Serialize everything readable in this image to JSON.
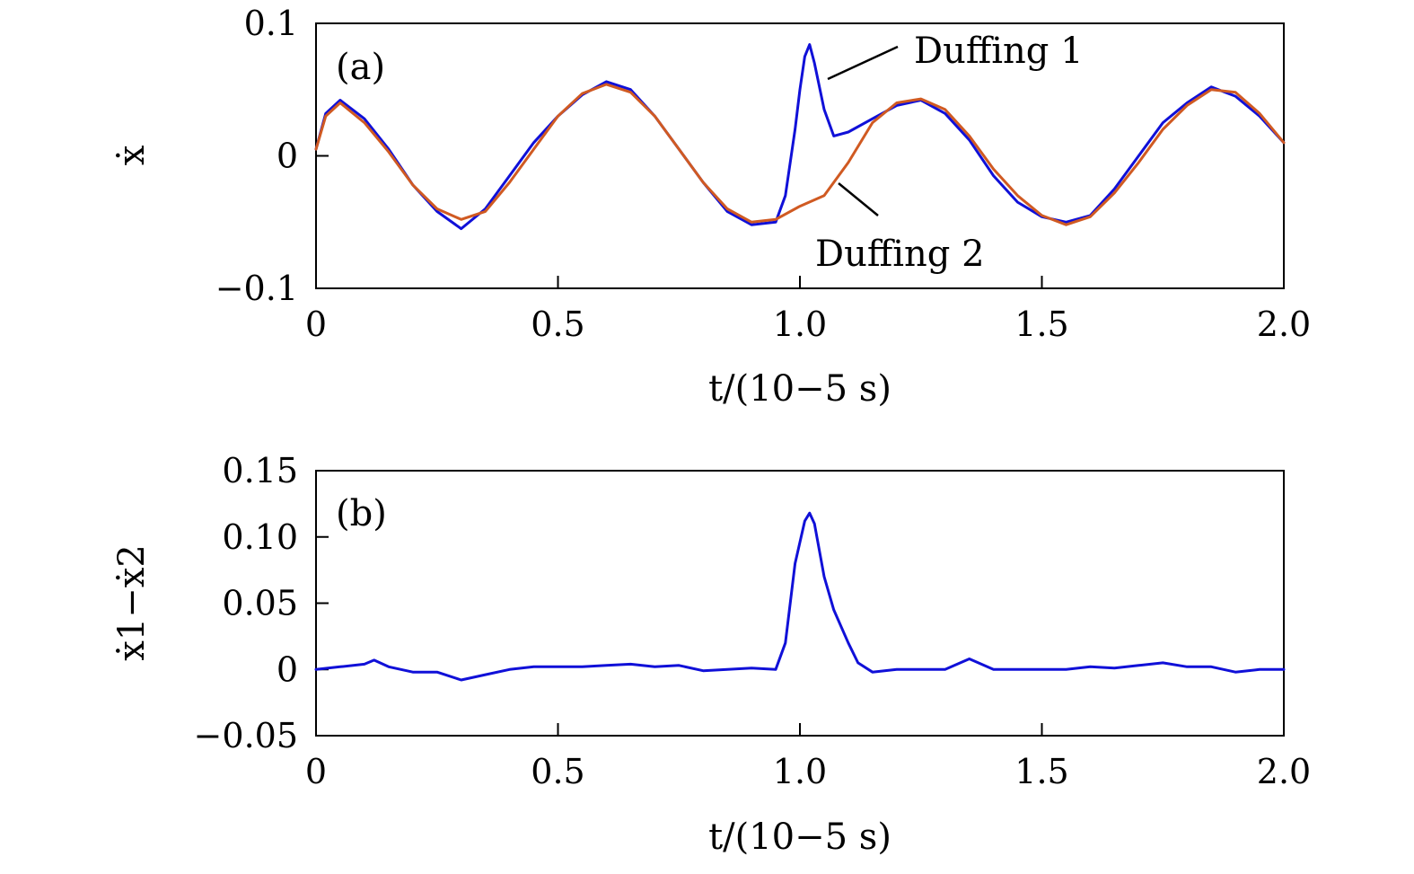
{
  "chart_data": [
    {
      "type": "line",
      "panel_label": "(a)",
      "xlabel": "t/(10−5 s)",
      "ylabel": "ẋ",
      "xlim": [
        0,
        2.0
      ],
      "ylim": [
        -0.1,
        0.1
      ],
      "xticks": [
        "0",
        "0.5",
        "1.0",
        "1.5",
        "2.0"
      ],
      "yticks": [
        "−0.1",
        "0",
        "0.1"
      ],
      "grid": false,
      "colors": {
        "duffing1": "#1010d8",
        "duffing2": "#d05a22"
      },
      "series": [
        {
          "name": "Duffing 1",
          "x": [
            0,
            0.02,
            0.05,
            0.1,
            0.15,
            0.2,
            0.25,
            0.3,
            0.35,
            0.4,
            0.45,
            0.5,
            0.55,
            0.6,
            0.65,
            0.7,
            0.75,
            0.8,
            0.85,
            0.9,
            0.95,
            0.97,
            0.99,
            1.0,
            1.01,
            1.02,
            1.03,
            1.05,
            1.07,
            1.1,
            1.15,
            1.2,
            1.25,
            1.3,
            1.35,
            1.4,
            1.45,
            1.5,
            1.55,
            1.6,
            1.65,
            1.7,
            1.75,
            1.8,
            1.85,
            1.9,
            1.95,
            2.0
          ],
          "y": [
            0.005,
            0.032,
            0.042,
            0.028,
            0.005,
            -0.022,
            -0.042,
            -0.055,
            -0.04,
            -0.015,
            0.01,
            0.03,
            0.046,
            0.056,
            0.05,
            0.03,
            0.005,
            -0.02,
            -0.042,
            -0.052,
            -0.05,
            -0.03,
            0.02,
            0.05,
            0.075,
            0.084,
            0.07,
            0.035,
            0.015,
            0.018,
            0.028,
            0.038,
            0.042,
            0.032,
            0.012,
            -0.015,
            -0.035,
            -0.046,
            -0.05,
            -0.045,
            -0.025,
            0.0,
            0.025,
            0.04,
            0.052,
            0.045,
            0.03,
            0.01
          ]
        },
        {
          "name": "Duffing 2",
          "x": [
            0,
            0.02,
            0.05,
            0.1,
            0.15,
            0.2,
            0.25,
            0.3,
            0.35,
            0.4,
            0.45,
            0.5,
            0.55,
            0.6,
            0.65,
            0.7,
            0.75,
            0.8,
            0.85,
            0.9,
            0.95,
            1.0,
            1.05,
            1.1,
            1.15,
            1.2,
            1.25,
            1.3,
            1.35,
            1.4,
            1.45,
            1.5,
            1.55,
            1.6,
            1.65,
            1.7,
            1.75,
            1.8,
            1.85,
            1.9,
            1.95,
            2.0
          ],
          "y": [
            0.005,
            0.03,
            0.04,
            0.025,
            0.003,
            -0.022,
            -0.04,
            -0.048,
            -0.042,
            -0.02,
            0.005,
            0.03,
            0.047,
            0.054,
            0.048,
            0.03,
            0.005,
            -0.02,
            -0.04,
            -0.05,
            -0.048,
            -0.038,
            -0.03,
            -0.005,
            0.025,
            0.04,
            0.043,
            0.035,
            0.015,
            -0.01,
            -0.03,
            -0.045,
            -0.052,
            -0.046,
            -0.028,
            -0.005,
            0.02,
            0.038,
            0.05,
            0.048,
            0.032,
            0.01
          ]
        }
      ],
      "annotations": [
        "Duffing 1",
        "Duffing 2"
      ]
    },
    {
      "type": "line",
      "panel_label": "(b)",
      "xlabel": "t/(10−5 s)",
      "ylabel": "ẋ1−ẋ2",
      "xlim": [
        0,
        2.0
      ],
      "ylim": [
        -0.05,
        0.15
      ],
      "xticks": [
        "0",
        "0.5",
        "1.0",
        "1.5",
        "2.0"
      ],
      "yticks": [
        "−0.05",
        "0",
        "0.05",
        "0.10",
        "0.15"
      ],
      "grid": false,
      "colors": {
        "difference": "#1010d8"
      },
      "series": [
        {
          "x": [
            0,
            0.05,
            0.1,
            0.12,
            0.15,
            0.2,
            0.25,
            0.3,
            0.35,
            0.4,
            0.45,
            0.5,
            0.55,
            0.6,
            0.65,
            0.7,
            0.75,
            0.8,
            0.85,
            0.9,
            0.95,
            0.97,
            0.99,
            1.01,
            1.02,
            1.03,
            1.05,
            1.07,
            1.1,
            1.12,
            1.15,
            1.2,
            1.25,
            1.3,
            1.35,
            1.4,
            1.45,
            1.5,
            1.55,
            1.6,
            1.65,
            1.7,
            1.75,
            1.8,
            1.85,
            1.9,
            1.95,
            2.0
          ],
          "y": [
            0.0,
            0.002,
            0.004,
            0.007,
            0.002,
            -0.002,
            -0.002,
            -0.008,
            -0.004,
            0.0,
            0.002,
            0.002,
            0.002,
            0.003,
            0.004,
            0.002,
            0.003,
            -0.001,
            0.0,
            0.001,
            0.0,
            0.02,
            0.08,
            0.112,
            0.118,
            0.11,
            0.07,
            0.045,
            0.02,
            0.005,
            -0.002,
            0.0,
            0.0,
            0.0,
            0.008,
            0.0,
            0.0,
            0.0,
            0.0,
            0.002,
            0.001,
            0.003,
            0.005,
            0.002,
            0.002,
            -0.002,
            0.0,
            0.0
          ]
        }
      ]
    }
  ]
}
